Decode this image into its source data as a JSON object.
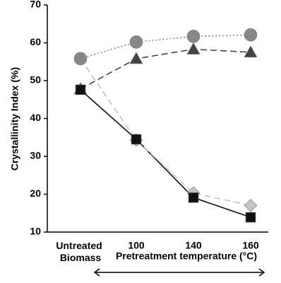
{
  "chart_data": {
    "type": "line",
    "y_label": "Crystallinity Index (%)",
    "x_label": "Pretreatment temperature (°C)",
    "categories": [
      "Untreated Biomass",
      "100",
      "140",
      "160"
    ],
    "series": [
      {
        "color": "#111111",
        "marker": "square",
        "dash": "solid",
        "values": [
          47.6,
          34.5,
          19.1,
          13.9
        ]
      },
      {
        "color": "#c4c4c4",
        "marker": "diamond",
        "dash": "dashed",
        "values": [
          55.8,
          34.3,
          20.3,
          17.0
        ]
      },
      {
        "color": "#888888",
        "marker": "circle",
        "dash": "dotted",
        "values": [
          55.8,
          60.2,
          61.7,
          62.1
        ]
      },
      {
        "color": "#444444",
        "marker": "triangle",
        "dash": "dashed",
        "values": [
          47.8,
          55.8,
          58.3,
          57.5
        ]
      }
    ],
    "ylim": [
      10,
      70
    ],
    "yticks": [
      10,
      20,
      30,
      40,
      50,
      60,
      70
    ]
  }
}
